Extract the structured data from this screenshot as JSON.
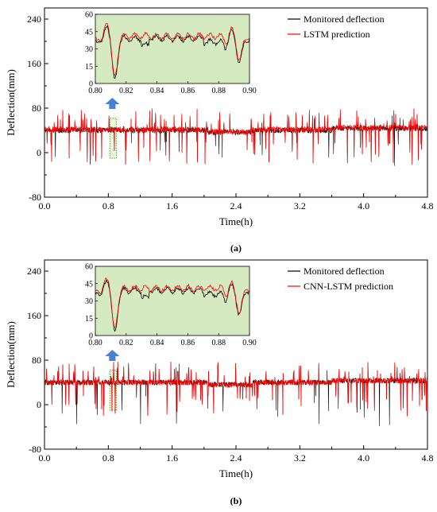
{
  "chart_data": [
    {
      "type": "line",
      "caption": "(a)",
      "xlabel": "Time(h)",
      "ylabel": "Deflection(mm)",
      "xlim": [
        0,
        4.8
      ],
      "ylim": [
        -80,
        260
      ],
      "x_ticks": [
        "0.0",
        "0.8",
        "1.6",
        "2.4",
        "3.2",
        "4.0",
        "4.8"
      ],
      "y_ticks": [
        "-80",
        "0",
        "80",
        "160",
        "240"
      ],
      "legend_position": "top-right",
      "series": [
        {
          "name": "Monitored deflection",
          "color": "#000000",
          "baseline": 40
        },
        {
          "name": "LSTM prediction",
          "color": "#ff0000",
          "baseline": 42
        }
      ],
      "highlight_window": [
        0.8,
        0.9
      ],
      "inset": {
        "xlim": [
          0.8,
          0.9
        ],
        "ylim": [
          0,
          60
        ],
        "x_ticks": [
          "0.80",
          "0.82",
          "0.84",
          "0.86",
          "0.88",
          "0.90"
        ],
        "y_ticks": [
          "0",
          "15",
          "30",
          "45",
          "60"
        ],
        "background": "#d6eac1",
        "events": [
          {
            "x": 0.811,
            "peak": 54,
            "trough": 5
          },
          {
            "x": 0.892,
            "peak": 47,
            "trough": 20
          }
        ]
      }
    },
    {
      "type": "line",
      "caption": "(b)",
      "xlabel": "Time(h)",
      "ylabel": "Deflection(mm)",
      "xlim": [
        0,
        4.8
      ],
      "ylim": [
        -80,
        260
      ],
      "x_ticks": [
        "0.0",
        "0.8",
        "1.6",
        "2.4",
        "3.2",
        "4.0",
        "4.8"
      ],
      "y_ticks": [
        "-80",
        "0",
        "80",
        "160",
        "240"
      ],
      "legend_position": "top-right",
      "series": [
        {
          "name": "Monitored deflection",
          "color": "#000000",
          "baseline": 40
        },
        {
          "name": "CNN-LSTM prediction",
          "color": "#ff0000",
          "baseline": 40
        }
      ],
      "highlight_window": [
        0.8,
        0.9
      ],
      "inset": {
        "xlim": [
          0.8,
          0.9
        ],
        "ylim": [
          0,
          60
        ],
        "x_ticks": [
          "0.80",
          "0.82",
          "0.84",
          "0.86",
          "0.88",
          "0.90"
        ],
        "y_ticks": [
          "0",
          "15",
          "30",
          "45",
          "60"
        ],
        "background": "#d6eac1",
        "events": [
          {
            "x": 0.811,
            "peak": 52,
            "trough": 5
          },
          {
            "x": 0.892,
            "peak": 45,
            "trough": 20
          }
        ]
      }
    }
  ]
}
